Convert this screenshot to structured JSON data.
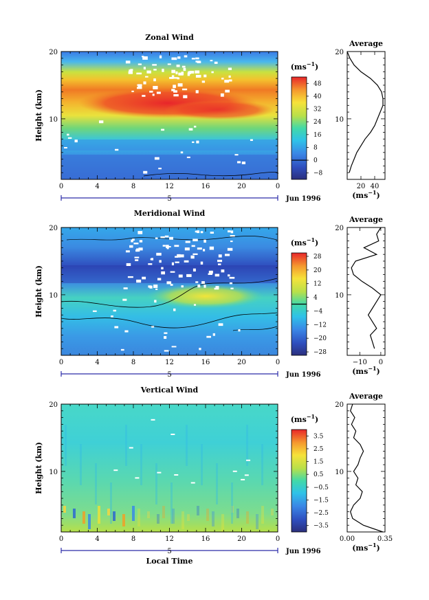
{
  "chart_data": [
    {
      "type": "heatmap",
      "title": "Zonal Wind",
      "ylabel": "Height (km)",
      "xlabel": "",
      "x_ticks": [
        "0",
        "4",
        "8",
        "12",
        "16",
        "20",
        "0"
      ],
      "y_ticks": [
        "10",
        "20"
      ],
      "xlim": [
        0,
        24
      ],
      "ylim": [
        1,
        20
      ],
      "date_label": "Jun 1996",
      "day_label": "5",
      "colorbar": {
        "unit": "(ms",
        "unit_exp": "−1",
        "unit_close": ")",
        "min": -12,
        "max": 52,
        "labels": [
          "48",
          "40",
          "32",
          "24",
          "16",
          "8",
          "0",
          "−8"
        ],
        "contour_at": 0
      },
      "profile": {
        "title": "Average",
        "x_ticks": [
          "20",
          "40"
        ],
        "xlabel": "(ms",
        "xlabel_exp": "−1",
        "xlabel_close": ")",
        "y_ticks": [
          "10",
          "20"
        ],
        "xlim": [
          0,
          55
        ],
        "heights": [
          2,
          3,
          4,
          5,
          6,
          7,
          8,
          9,
          10,
          11,
          12,
          13,
          14,
          15,
          16,
          17,
          18,
          19,
          20
        ],
        "values": [
          3,
          6,
          10,
          14,
          20,
          26,
          34,
          40,
          44,
          48,
          52,
          52,
          50,
          44,
          34,
          20,
          10,
          4,
          0
        ]
      }
    },
    {
      "type": "heatmap",
      "title": "Meridional Wind",
      "ylabel": "Height (km)",
      "xlabel": "",
      "x_ticks": [
        "0",
        "4",
        "8",
        "12",
        "16",
        "20",
        "0"
      ],
      "y_ticks": [
        "10",
        "20"
      ],
      "xlim": [
        0,
        24
      ],
      "ylim": [
        1,
        20
      ],
      "date_label": "Jun 1996",
      "day_label": "5",
      "colorbar": {
        "unit": "(ms",
        "unit_exp": "−1",
        "unit_close": ")",
        "min": -30,
        "max": 30,
        "labels": [
          "28",
          "20",
          "12",
          "4",
          "−4",
          "−12",
          "−20",
          "−28"
        ],
        "contour_at": 0
      },
      "profile": {
        "title": "Average",
        "x_ticks": [
          "−10",
          "0"
        ],
        "xlabel": "(ms",
        "xlabel_exp": "−1",
        "xlabel_close": ")",
        "y_ticks": [
          "10",
          "20"
        ],
        "xlim": [
          -16,
          2
        ],
        "heights": [
          2,
          3,
          4,
          5,
          6,
          7,
          8,
          9,
          10,
          11,
          12,
          13,
          14,
          15,
          16,
          17,
          18,
          19,
          20
        ],
        "values": [
          -3,
          -4,
          -5,
          -2,
          -4,
          -6,
          -4,
          -2,
          0,
          -4,
          -9,
          -13,
          -14,
          -12,
          -2,
          -8,
          -1,
          -2,
          0
        ]
      }
    },
    {
      "type": "heatmap",
      "title": "Vertical Wind",
      "ylabel": "Height (km)",
      "xlabel": "Local Time",
      "x_ticks": [
        "0",
        "4",
        "8",
        "12",
        "16",
        "20",
        "0"
      ],
      "y_ticks": [
        "10",
        "20"
      ],
      "xlim": [
        0,
        24
      ],
      "ylim": [
        1,
        20
      ],
      "date_label": "Jun 1996",
      "day_label": "5",
      "colorbar": {
        "unit": "(ms",
        "unit_exp": "−1",
        "unit_close": ")",
        "min": -4,
        "max": 4,
        "labels": [
          "3.5",
          "2.5",
          "1.5",
          "0.5",
          "−0.5",
          "−1.5",
          "−2.5",
          "−3.5"
        ],
        "contour_at": null
      },
      "profile": {
        "title": "Average",
        "x_ticks": [
          "0.00",
          "0.35"
        ],
        "xlabel": "(ms",
        "xlabel_exp": "−1",
        "xlabel_close": ")",
        "y_ticks": [
          "10",
          "20"
        ],
        "xlim": [
          0,
          0.35
        ],
        "heights": [
          1,
          2,
          3,
          4,
          5,
          6,
          7,
          8,
          9,
          10,
          11,
          12,
          13,
          14,
          15,
          16,
          17,
          18,
          19,
          20
        ],
        "values": [
          0.33,
          0.15,
          0.05,
          0.03,
          0.06,
          0.12,
          0.14,
          0.08,
          0.1,
          0.06,
          0.1,
          0.12,
          0.15,
          0.12,
          0.06,
          0.08,
          0.04,
          0.07,
          0.03,
          0.05
        ]
      }
    }
  ]
}
